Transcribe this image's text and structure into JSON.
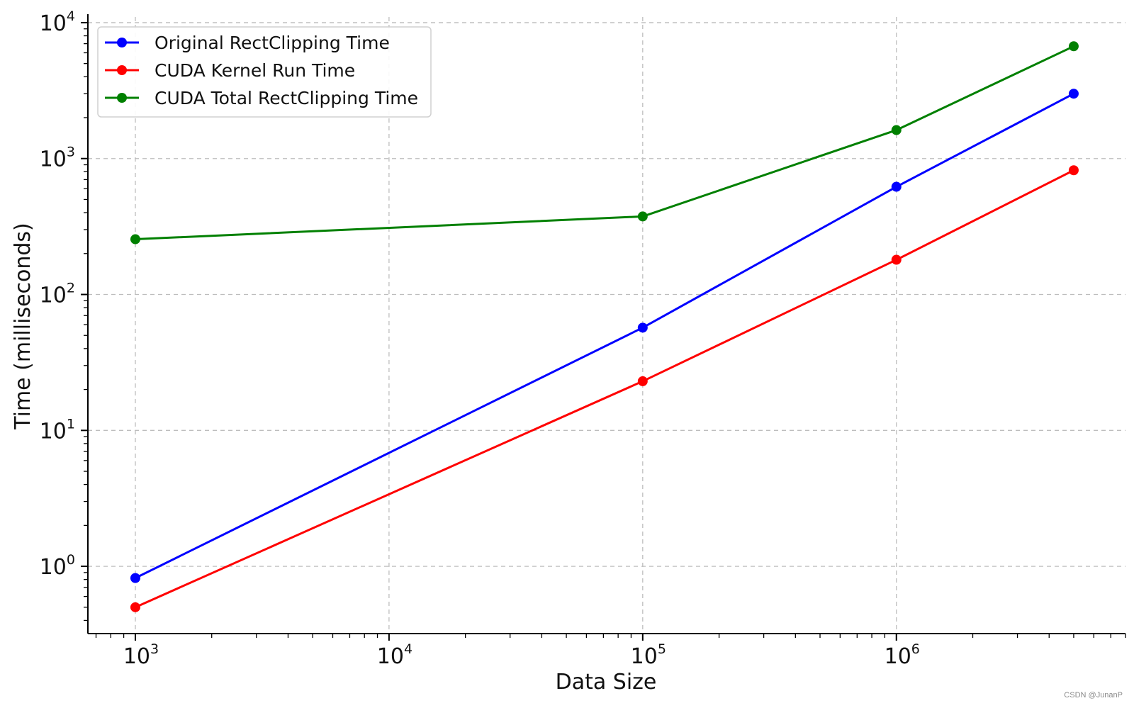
{
  "chart_data": {
    "type": "line",
    "xlabel": "Data Size",
    "ylabel": "Time (milliseconds)",
    "xscale": "log",
    "yscale": "log",
    "xlim": [
      650,
      8000000
    ],
    "ylim": [
      0.32,
      11000
    ],
    "x_ticks": [
      {
        "base": "10",
        "exp": "3",
        "value": 1000
      },
      {
        "base": "10",
        "exp": "4",
        "value": 10000
      },
      {
        "base": "10",
        "exp": "5",
        "value": 100000
      },
      {
        "base": "10",
        "exp": "6",
        "value": 1000000
      }
    ],
    "y_ticks": [
      {
        "base": "10",
        "exp": "0",
        "value": 1
      },
      {
        "base": "10",
        "exp": "1",
        "value": 10
      },
      {
        "base": "10",
        "exp": "2",
        "value": 100
      },
      {
        "base": "10",
        "exp": "3",
        "value": 1000
      },
      {
        "base": "10",
        "exp": "4",
        "value": 10000
      }
    ],
    "grid": true,
    "legend_position": "top-left",
    "x": [
      1000,
      100000,
      1000000,
      5000000
    ],
    "series": [
      {
        "name": "Original RectClipping Time",
        "color": "#0000ff",
        "values": [
          0.82,
          57,
          620,
          3000
        ]
      },
      {
        "name": "CUDA Kernel Run Time",
        "color": "#ff0000",
        "values": [
          0.5,
          23,
          180,
          820
        ]
      },
      {
        "name": "CUDA Total RectClipping Time",
        "color": "#008000",
        "values": [
          255,
          375,
          1620,
          6700
        ]
      }
    ]
  },
  "watermark": "CSDN @JunanP"
}
